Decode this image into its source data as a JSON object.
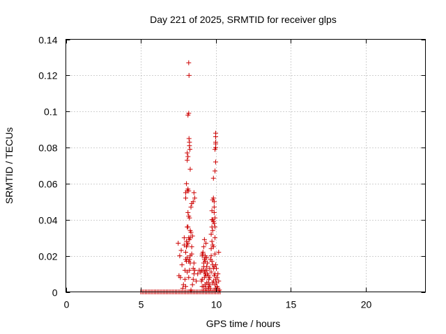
{
  "chart_data": {
    "type": "scatter",
    "title": "Day 221 of 2025, SRMTID for receiver glps",
    "xlabel": "GPS time / hours",
    "ylabel": "SRMTID / TECUs",
    "xlim": [
      0,
      24
    ],
    "ylim": [
      0,
      0.14
    ],
    "xticks": [
      0,
      5,
      10,
      15,
      20
    ],
    "xtick_labels": [
      "0",
      "5",
      "10",
      "15",
      "20"
    ],
    "yticks": [
      0,
      0.02,
      0.04,
      0.06,
      0.08,
      0.1,
      0.12,
      0.14
    ],
    "ytick_labels": [
      "0",
      "0.02",
      "0.04",
      "0.06",
      "0.08",
      "0.1",
      "0.12",
      "0.14"
    ],
    "grid": true,
    "marker": "plus",
    "color": "#cc0000",
    "series": [
      {
        "name": "",
        "x": [
          5.0,
          5.1,
          5.2,
          5.3,
          5.4,
          5.5,
          5.6,
          5.7,
          5.8,
          5.9,
          6.0,
          6.1,
          6.2,
          6.3,
          6.4,
          6.5,
          6.6,
          6.7,
          6.8,
          6.9,
          7.0,
          7.1,
          7.2,
          7.3,
          7.4,
          7.5,
          7.6,
          7.7,
          7.8,
          7.9,
          8.0,
          8.1,
          8.2,
          8.3,
          8.4,
          8.5,
          8.6,
          8.7,
          8.8,
          8.9,
          9.0,
          9.1,
          9.2,
          9.3,
          9.4,
          9.5,
          9.6,
          9.7,
          9.8,
          9.9,
          10.0,
          10.1,
          10.2,
          10.3,
          7.5,
          7.55,
          7.6,
          7.65,
          7.7,
          7.75,
          7.8,
          7.85,
          7.9,
          7.9,
          7.95,
          7.95,
          8.0,
          8.0,
          8.0,
          8.05,
          8.05,
          8.05,
          8.1,
          8.1,
          8.1,
          8.1,
          8.15,
          8.15,
          8.15,
          8.15,
          8.2,
          8.2,
          8.2,
          8.2,
          8.2,
          8.25,
          8.25,
          8.25,
          8.25,
          8.3,
          8.3,
          8.3,
          8.3,
          8.35,
          8.35,
          8.35,
          8.4,
          8.4,
          8.45,
          8.45,
          8.5,
          8.5,
          8.55,
          8.55,
          8.6,
          8.6,
          8.7,
          8.8,
          8.9,
          8.2,
          8.22,
          8.22,
          8.25,
          8.25,
          8.28,
          8.1,
          8.1,
          8.15,
          8.05,
          8.0,
          8.0,
          8.1,
          8.15,
          8.2,
          8.3,
          8.5,
          8.55,
          8.4,
          9.0,
          9.05,
          9.1,
          9.1,
          9.15,
          9.15,
          9.2,
          9.2,
          9.2,
          9.25,
          9.25,
          9.25,
          9.3,
          9.3,
          9.3,
          9.35,
          9.35,
          9.4,
          9.4,
          9.45,
          9.5,
          9.5,
          9.55,
          9.6,
          9.6,
          9.65,
          9.7,
          9.7,
          9.75,
          9.75,
          9.8,
          9.8,
          9.8,
          9.85,
          9.85,
          9.85,
          9.9,
          9.9,
          9.9,
          9.95,
          9.95,
          9.95,
          10.0,
          10.0,
          10.0,
          10.05,
          10.05,
          10.1,
          10.1,
          10.15,
          10.15,
          10.2,
          10.2,
          10.25,
          9.75,
          9.8,
          9.85,
          9.9,
          9.9,
          9.95,
          9.95,
          9.95,
          10.0,
          10.0,
          10.0,
          10.0,
          10.0,
          9.95,
          9.85,
          9.9,
          9.8,
          9.75,
          9.7,
          9.75,
          9.85,
          10.0,
          9.95,
          9.8,
          9.9,
          9.7,
          9.65,
          9.1,
          9.2,
          9.3,
          9.4,
          9.5,
          9.1,
          9.3,
          9.2,
          9.4,
          9.6,
          9.55,
          9.35,
          9.15,
          9.25,
          9.45,
          9.05,
          9.5,
          9.3
        ],
        "y": [
          0,
          0,
          0,
          0,
          0,
          0,
          0,
          0,
          0,
          0,
          0,
          0,
          0,
          0,
          0,
          0,
          0,
          0,
          0,
          0,
          0,
          0,
          0,
          0,
          0,
          0,
          0,
          0,
          0,
          0,
          0,
          0,
          0,
          0,
          0,
          0,
          0,
          0,
          0,
          0,
          0,
          0,
          0,
          0,
          0,
          0,
          0,
          0,
          0,
          0,
          0,
          0,
          0,
          0,
          0.027,
          0.009,
          0.02,
          0.008,
          0.023,
          0.015,
          0.002,
          0.004,
          0.026,
          0.03,
          0.012,
          0.007,
          0.022,
          0.018,
          0.003,
          0.028,
          0.017,
          0.025,
          0.036,
          0.019,
          0.026,
          0.011,
          0.057,
          0.036,
          0.044,
          0.027,
          0.056,
          0.042,
          0.03,
          0.017,
          0.008,
          0.041,
          0.018,
          0.029,
          0.012,
          0.034,
          0.03,
          0.02,
          0.016,
          0.047,
          0.033,
          0.001,
          0.049,
          0.021,
          0.031,
          0.004,
          0.05,
          0.007,
          0.055,
          0.01,
          0.052,
          0.012,
          0.006,
          0.01,
          0.012,
          0.127,
          0.12,
          0.085,
          0.083,
          0.081,
          0.079,
          0.077,
          0.073,
          0.075,
          0.06,
          0.055,
          0.052,
          0.056,
          0.098,
          0.099,
          0.068,
          0.013,
          0.016,
          0.025,
          0.011,
          0.012,
          0.02,
          0.007,
          0.021,
          0.012,
          0.025,
          0.016,
          0.003,
          0.029,
          0.018,
          0.008,
          0.02,
          0.012,
          0.004,
          0.027,
          0.009,
          0.019,
          0.014,
          0.01,
          0.001,
          0.005,
          0.003,
          0.013,
          0.008,
          0.002,
          0.024,
          0.011,
          0.028,
          0.017,
          0.026,
          0.015,
          0.005,
          0.025,
          0.013,
          0.006,
          0.014,
          0.009,
          0.001,
          0.021,
          0.01,
          0.004,
          0.015,
          0.007,
          0.002,
          0.013,
          0.005,
          0.008,
          0.003,
          0.01,
          0.002,
          0.022,
          0.006,
          0.001,
          0.04,
          0.051,
          0.052,
          0.05,
          0.044,
          0.041,
          0.036,
          0.03,
          0.088,
          0.086,
          0.083,
          0.08,
          0.072,
          0.067,
          0.063,
          0.047,
          0.04,
          0.036,
          0.032,
          0.045,
          0.039,
          0.082,
          0.079,
          0.034,
          0.038,
          0.02,
          0.018,
          0.021,
          0.014,
          0.01,
          0.005,
          0.009,
          0.003,
          0.017,
          0.001,
          0.012,
          0.004,
          0.007,
          0.002,
          0.022,
          0.011,
          0.016,
          0.006,
          0.002,
          0.019
        ]
      }
    ]
  }
}
